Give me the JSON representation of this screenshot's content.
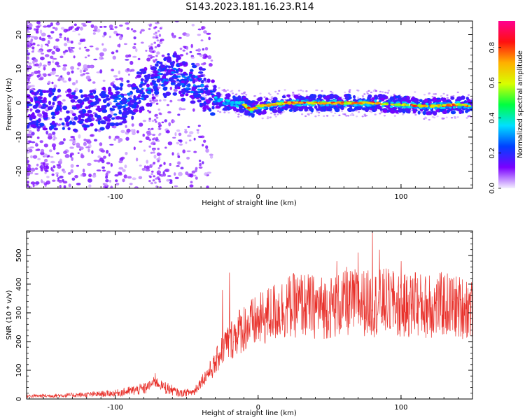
{
  "title": "S143.2023.181.16.23.R14",
  "chart_data": [
    {
      "type": "heatmap",
      "xlabel": "Height of straight line (km)",
      "ylabel": "Frequency (Hz)",
      "xlim": [
        -162,
        150
      ],
      "ylim": [
        -25,
        24
      ],
      "xticks": [
        -100,
        0,
        100
      ],
      "xtick_labels": [
        "-100",
        "0",
        "100"
      ],
      "yticks": [
        -20,
        -10,
        0,
        10,
        20
      ],
      "ytick_labels": [
        "-20",
        "-10",
        "0",
        "10",
        "20"
      ],
      "colorbar": {
        "label": "Normalized spectral amplitude",
        "range": [
          0,
          0.95
        ],
        "ticks": [
          0.0,
          0.2,
          0.4,
          0.6,
          0.8
        ],
        "tick_labels": [
          "0.0",
          "0.2",
          "0.4",
          "0.6",
          "0.8"
        ],
        "colormap": [
          "#f4f0ff",
          "#7a00ff",
          "#0040ff",
          "#00e0ff",
          "#00ff40",
          "#d8ff00",
          "#ffb000",
          "#ff1010",
          "#ff0090"
        ]
      },
      "ridge": {
        "x": [
          -162,
          -140,
          -120,
          -100,
          -90,
          -80,
          -70,
          -60,
          -50,
          -40,
          -35,
          -30,
          -20,
          -10,
          -5,
          0,
          20,
          40,
          60,
          80,
          100,
          120,
          140,
          150
        ],
        "y": [
          -2,
          -2,
          -2.5,
          -1,
          1,
          4,
          7,
          9,
          6,
          5,
          3,
          1,
          0,
          -0.5,
          -2,
          -1,
          0,
          0,
          0,
          0,
          -0.5,
          -1,
          -0.5,
          -1
        ]
      },
      "grid": false
    },
    {
      "type": "line",
      "xlabel": "Height of straight line (km)",
      "ylabel": "SNR (10 * v/v)",
      "xlim": [
        -162,
        150
      ],
      "ylim": [
        0,
        585
      ],
      "xticks": [
        -100,
        0,
        100
      ],
      "xtick_labels": [
        "-100",
        "0",
        "100"
      ],
      "yticks": [
        0,
        100,
        200,
        300,
        400,
        500
      ],
      "ytick_labels": [
        "0",
        "100",
        "200",
        "300",
        "400",
        "500"
      ],
      "series": [
        {
          "color": "#e8302a",
          "envelope": {
            "x": [
              -162,
              -140,
              -120,
              -100,
              -80,
              -72,
              -65,
              -55,
              -45,
              -40,
              -35,
              -30,
              -25,
              -20,
              -15,
              -10,
              0,
              10,
              20,
              30,
              40,
              50,
              60,
              70,
              80,
              90,
              100,
              110,
              120,
              130,
              140,
              150
            ],
            "y": [
              10,
              12,
              15,
              20,
              35,
              60,
              40,
              20,
              25,
              60,
              90,
              120,
              180,
              200,
              230,
              250,
              270,
              300,
              320,
              330,
              320,
              320,
              330,
              340,
              330,
              340,
              320,
              330,
              320,
              330,
              320,
              320
            ]
          },
          "spikes": [
            [
              -72,
              90
            ],
            [
              -20,
              440
            ],
            [
              -25,
              380
            ],
            [
              55,
              480
            ],
            [
              62,
              460
            ],
            [
              70,
              510
            ],
            [
              80,
              585
            ],
            [
              85,
              520
            ],
            [
              95,
              440
            ],
            [
              100,
              480
            ],
            [
              110,
              440
            ],
            [
              120,
              430
            ],
            [
              135,
              420
            ],
            [
              -10,
              170
            ],
            [
              -28,
              160
            ]
          ]
        }
      ],
      "grid": false
    }
  ]
}
